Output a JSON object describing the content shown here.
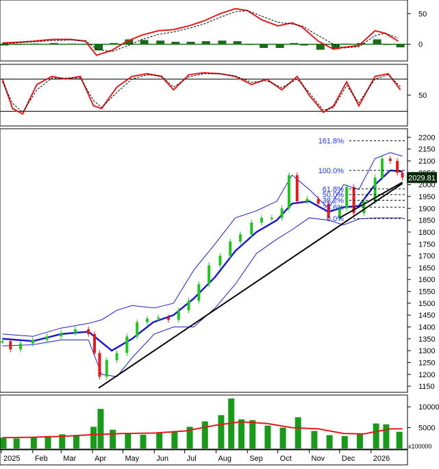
{
  "chart_data": [
    {
      "type": "line",
      "panel": "macd",
      "y_ticks": [
        50,
        0
      ],
      "ylim": [
        -25,
        70
      ],
      "legend": "none",
      "grid": false,
      "series": [
        {
          "role": "macd-line",
          "color": "#e21a1a",
          "x": [
            "2025-01-02",
            "2025-01-15",
            "2025-02-01",
            "2025-02-20",
            "2025-03-10",
            "2025-03-25",
            "2025-04-05",
            "2025-04-20",
            "2025-05-05",
            "2025-05-20",
            "2025-06-05",
            "2025-06-20",
            "2025-07-05",
            "2025-07-20",
            "2025-08-05",
            "2025-08-20",
            "2025-09-01",
            "2025-09-15",
            "2025-10-01",
            "2025-10-15",
            "2025-10-25",
            "2025-11-10",
            "2025-11-25",
            "2025-12-05",
            "2025-12-20",
            "2026-01-05",
            "2026-01-15",
            "2026-01-28"
          ],
          "values": [
            2,
            3,
            5,
            8,
            8,
            5,
            -18,
            -10,
            5,
            15,
            22,
            24,
            30,
            38,
            50,
            58,
            55,
            40,
            30,
            35,
            28,
            5,
            -8,
            -5,
            -2,
            22,
            18,
            5
          ]
        },
        {
          "role": "signal-line",
          "color": "#000000",
          "x": [
            "2025-01-02",
            "2025-01-15",
            "2025-02-01",
            "2025-02-20",
            "2025-03-10",
            "2025-03-25",
            "2025-04-05",
            "2025-04-20",
            "2025-05-05",
            "2025-05-20",
            "2025-06-05",
            "2025-06-20",
            "2025-07-05",
            "2025-07-20",
            "2025-08-05",
            "2025-08-20",
            "2025-09-01",
            "2025-09-15",
            "2025-10-01",
            "2025-10-15",
            "2025-10-25",
            "2025-11-10",
            "2025-11-25",
            "2025-12-05",
            "2025-12-20",
            "2026-01-05",
            "2026-01-15",
            "2026-01-28"
          ],
          "values": [
            1,
            2,
            4,
            6,
            7,
            6,
            -8,
            -12,
            -3,
            8,
            16,
            20,
            26,
            33,
            44,
            53,
            55,
            46,
            36,
            33,
            30,
            14,
            0,
            -6,
            -4,
            14,
            18,
            10
          ]
        }
      ],
      "histogram": {
        "color": "#1a6b1a",
        "x": [
          "2025-01-02",
          "2025-01-15",
          "2025-02-01",
          "2025-02-20",
          "2025-03-10",
          "2025-03-25",
          "2025-04-05",
          "2025-04-20",
          "2025-05-05",
          "2025-05-20",
          "2025-06-05",
          "2025-06-20",
          "2025-07-05",
          "2025-07-20",
          "2025-08-05",
          "2025-08-20",
          "2025-09-01",
          "2025-09-15",
          "2025-10-01",
          "2025-10-15",
          "2025-10-25",
          "2025-11-10",
          "2025-11-25",
          "2025-12-05",
          "2025-12-20",
          "2026-01-05",
          "2026-01-15",
          "2026-01-28"
        ],
        "values": [
          -2,
          -1,
          1,
          2,
          1,
          -1,
          -10,
          2,
          8,
          7,
          6,
          4,
          4,
          5,
          6,
          5,
          0,
          -6,
          -6,
          2,
          -2,
          -9,
          -8,
          1,
          2,
          8,
          0,
          -5
        ]
      }
    },
    {
      "type": "line",
      "panel": "oscillator",
      "y_ticks": [
        50
      ],
      "ylim": [
        -5,
        105
      ],
      "reference_lines": [
        80,
        20
      ],
      "legend": "none",
      "grid": false,
      "series": [
        {
          "role": "oscillator",
          "color": "#e21a1a",
          "x": [
            "2025-01-02",
            "2025-01-12",
            "2025-01-22",
            "2025-02-05",
            "2025-02-20",
            "2025-03-05",
            "2025-03-20",
            "2025-04-02",
            "2025-04-10",
            "2025-04-25",
            "2025-05-10",
            "2025-05-25",
            "2025-06-08",
            "2025-06-20",
            "2025-07-05",
            "2025-07-20",
            "2025-08-05",
            "2025-08-20",
            "2025-09-05",
            "2025-09-20",
            "2025-10-05",
            "2025-10-20",
            "2025-11-01",
            "2025-11-15",
            "2025-11-25",
            "2025-12-08",
            "2025-12-20",
            "2026-01-05",
            "2026-01-18",
            "2026-01-30"
          ],
          "values": [
            80,
            25,
            15,
            70,
            85,
            80,
            85,
            30,
            25,
            65,
            85,
            90,
            85,
            60,
            88,
            92,
            90,
            85,
            70,
            80,
            60,
            85,
            50,
            18,
            30,
            75,
            30,
            85,
            90,
            60
          ]
        },
        {
          "role": "signal",
          "color": "#000000",
          "x": [
            "2025-01-02",
            "2025-01-12",
            "2025-01-22",
            "2025-02-05",
            "2025-02-20",
            "2025-03-05",
            "2025-03-20",
            "2025-04-02",
            "2025-04-10",
            "2025-04-25",
            "2025-05-10",
            "2025-05-25",
            "2025-06-08",
            "2025-06-20",
            "2025-07-05",
            "2025-07-20",
            "2025-08-05",
            "2025-08-20",
            "2025-09-05",
            "2025-09-20",
            "2025-10-05",
            "2025-10-20",
            "2025-11-01",
            "2025-11-15",
            "2025-11-25",
            "2025-12-08",
            "2025-12-20",
            "2026-01-05",
            "2026-01-18",
            "2026-01-30"
          ],
          "values": [
            75,
            35,
            18,
            60,
            82,
            82,
            82,
            40,
            27,
            55,
            80,
            88,
            86,
            65,
            84,
            90,
            90,
            86,
            74,
            77,
            64,
            80,
            55,
            22,
            27,
            68,
            36,
            80,
            88,
            66
          ]
        }
      ]
    },
    {
      "type": "line",
      "panel": "price",
      "y_ticks": [
        2200,
        2150,
        2100,
        2050,
        2000,
        1950,
        1900,
        1850,
        1800,
        1750,
        1700,
        1650,
        1600,
        1550,
        1500,
        1450,
        1400,
        1350,
        1300,
        1250,
        1200,
        1150
      ],
      "ylim": [
        1130,
        2230
      ],
      "last_price_label": "2029.81",
      "fibonacci": [
        {
          "label": "161.8%",
          "value": 2185
        },
        {
          "label": "100.0%",
          "value": 2060
        },
        {
          "label": "61.8%",
          "value": 1982
        },
        {
          "label": "50.0%",
          "value": 1958
        },
        {
          "label": "38.2%",
          "value": 1934
        },
        {
          "label": "23.6%",
          "value": 1905
        },
        {
          "label": "0.0%",
          "value": 1857
        }
      ],
      "trendlines": [
        {
          "role": "support",
          "color": "#000000",
          "x": [
            "2025-04-07",
            "2026-02-01"
          ],
          "values": [
            1142,
            2005
          ]
        },
        {
          "role": "support-short",
          "color": "#000000",
          "x": [
            "2025-12-01",
            "2026-02-01"
          ],
          "values": [
            1860,
            2010
          ]
        }
      ],
      "legend": "none",
      "grid": false,
      "series": [
        {
          "role": "close",
          "style": "candles",
          "up_color": "#22c322",
          "down_color": "#e21a1a",
          "x": [
            "2025-01-02",
            "2025-01-10",
            "2025-01-20",
            "2025-02-01",
            "2025-02-15",
            "2025-03-01",
            "2025-03-15",
            "2025-03-28",
            "2025-04-03",
            "2025-04-08",
            "2025-04-15",
            "2025-04-25",
            "2025-05-05",
            "2025-05-15",
            "2025-05-25",
            "2025-06-05",
            "2025-06-15",
            "2025-06-25",
            "2025-07-05",
            "2025-07-15",
            "2025-07-25",
            "2025-08-05",
            "2025-08-15",
            "2025-08-25",
            "2025-09-05",
            "2025-09-15",
            "2025-09-25",
            "2025-10-05",
            "2025-10-12",
            "2025-10-20",
            "2025-10-30",
            "2025-11-10",
            "2025-11-20",
            "2025-12-01",
            "2025-12-08",
            "2025-12-15",
            "2025-12-25",
            "2026-01-05",
            "2026-01-12",
            "2026-01-20",
            "2026-01-27",
            "2026-02-01"
          ],
          "values": [
            1340,
            1305,
            1330,
            1345,
            1360,
            1375,
            1390,
            1370,
            1290,
            1190,
            1260,
            1290,
            1360,
            1420,
            1435,
            1440,
            1430,
            1470,
            1510,
            1580,
            1660,
            1700,
            1760,
            1790,
            1840,
            1860,
            1860,
            1900,
            2040,
            1930,
            1940,
            1920,
            1860,
            1900,
            1990,
            1880,
            1930,
            2030,
            2110,
            2100,
            2050,
            2029.81
          ]
        },
        {
          "role": "ma",
          "color": "#1a1acc",
          "x": [
            "2025-01-02",
            "2025-02-01",
            "2025-03-01",
            "2025-03-28",
            "2025-04-20",
            "2025-05-10",
            "2025-05-31",
            "2025-06-20",
            "2025-07-10",
            "2025-07-31",
            "2025-08-20",
            "2025-09-10",
            "2025-09-30",
            "2025-10-15",
            "2025-11-01",
            "2025-11-20",
            "2025-12-05",
            "2025-12-20",
            "2026-01-05",
            "2026-01-20",
            "2026-02-01"
          ],
          "values": [
            1350,
            1340,
            1370,
            1380,
            1300,
            1350,
            1420,
            1450,
            1520,
            1610,
            1720,
            1800,
            1850,
            1920,
            1930,
            1885,
            1905,
            1910,
            2000,
            2060,
            2055
          ]
        },
        {
          "role": "upper-band",
          "color": "#1a1acc",
          "x": [
            "2025-01-02",
            "2025-02-01",
            "2025-03-01",
            "2025-03-28",
            "2025-04-10",
            "2025-04-25",
            "2025-05-10",
            "2025-06-01",
            "2025-06-20",
            "2025-07-10",
            "2025-07-31",
            "2025-08-20",
            "2025-09-10",
            "2025-09-30",
            "2025-10-15",
            "2025-11-01",
            "2025-11-20",
            "2025-12-05",
            "2025-12-20",
            "2026-01-05",
            "2026-01-20",
            "2026-02-01"
          ],
          "values": [
            1370,
            1360,
            1395,
            1415,
            1430,
            1470,
            1490,
            1480,
            1500,
            1640,
            1750,
            1860,
            1890,
            1930,
            2040,
            1980,
            1900,
            2000,
            1980,
            2110,
            2135,
            2120
          ]
        },
        {
          "role": "lower-band",
          "color": "#1a1acc",
          "x": [
            "2025-01-02",
            "2025-02-01",
            "2025-03-01",
            "2025-03-28",
            "2025-04-10",
            "2025-04-25",
            "2025-05-10",
            "2025-06-01",
            "2025-06-20",
            "2025-07-10",
            "2025-07-31",
            "2025-08-20",
            "2025-09-10",
            "2025-09-30",
            "2025-10-15",
            "2025-11-01",
            "2025-11-20",
            "2025-12-05",
            "2025-12-20",
            "2026-01-05",
            "2026-01-20",
            "2026-02-01"
          ],
          "values": [
            1320,
            1325,
            1345,
            1345,
            1200,
            1190,
            1270,
            1370,
            1400,
            1400,
            1480,
            1580,
            1710,
            1770,
            1810,
            1860,
            1850,
            1830,
            1855,
            1860,
            1860,
            1860
          ]
        }
      ]
    },
    {
      "type": "bar",
      "panel": "volume",
      "y_ticks": [
        10000,
        5000
      ],
      "ylim": [
        0,
        12500
      ],
      "unit_label": "x100000",
      "legend": "none",
      "grid": false,
      "x_tick_labels": [
        "2025",
        "Feb",
        "Mar",
        "Apr",
        "May",
        "Jun",
        "Jul",
        "Aug",
        "Sep",
        "Oct",
        "Nov",
        "Dec",
        "2026"
      ],
      "series": [
        {
          "role": "volume",
          "color": "#1a9a1a",
          "x": [
            "2025-01-02",
            "2025-01-15",
            "2025-02-01",
            "2025-02-15",
            "2025-03-01",
            "2025-03-15",
            "2025-04-01",
            "2025-04-08",
            "2025-04-20",
            "2025-05-05",
            "2025-05-20",
            "2025-06-05",
            "2025-06-20",
            "2025-07-05",
            "2025-07-20",
            "2025-08-05",
            "2025-08-15",
            "2025-08-25",
            "2025-09-05",
            "2025-09-20",
            "2025-10-05",
            "2025-10-20",
            "2025-11-05",
            "2025-11-20",
            "2025-12-05",
            "2025-12-20",
            "2026-01-05",
            "2026-01-15",
            "2026-01-28"
          ],
          "values": [
            2600,
            2400,
            2800,
            3000,
            3400,
            3200,
            5200,
            9500,
            4500,
            3500,
            3300,
            3800,
            4200,
            5200,
            6500,
            8000,
            12000,
            7000,
            6800,
            5500,
            5000,
            7500,
            4200,
            3200,
            3000,
            3400,
            6000,
            5800,
            4000
          ]
        },
        {
          "role": "volume-ma",
          "color": "#e21a1a",
          "x": [
            "2025-01-02",
            "2025-02-01",
            "2025-03-01",
            "2025-04-01",
            "2025-05-01",
            "2025-06-01",
            "2025-07-01",
            "2025-08-01",
            "2025-08-25",
            "2025-09-20",
            "2025-10-15",
            "2025-11-10",
            "2025-12-05",
            "2025-12-25",
            "2026-01-20",
            "2026-02-01"
          ],
          "values": [
            2600,
            2700,
            2900,
            3300,
            3600,
            3700,
            4200,
            5600,
            6400,
            6000,
            5000,
            4700,
            3600,
            3500,
            4700,
            4700
          ]
        }
      ]
    }
  ]
}
